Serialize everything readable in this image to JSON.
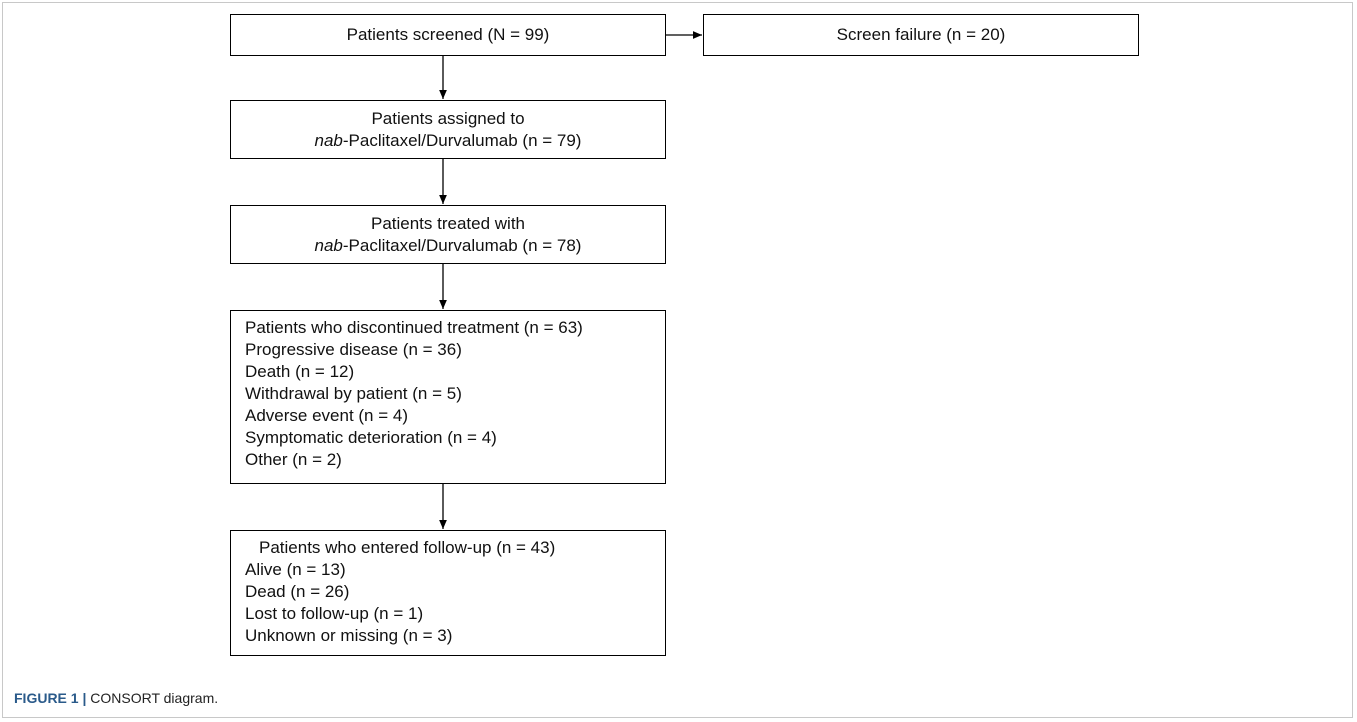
{
  "nodes": [
    {
      "label": "Patients screened (N = 99)"
    },
    {
      "label": "Screen failure (n = 20)"
    },
    {
      "label": "Patients assigned to",
      "italic": "nab",
      "rest": "-Paclitaxel/Durvalumab  (n = 79)"
    },
    {
      "label": "Patients treated with",
      "italic": "nab",
      "rest": "-Paclitaxel/Durvalumab  (n = 78)"
    },
    {
      "label": "Patients who discontinued treatment (n = 63)",
      "items": [
        "Progressive disease (n = 36)",
        "Death (n = 12)",
        "Withdrawal by patient (n = 5)",
        "Adverse event (n = 4)",
        "Symptomatic deterioration (n = 4)",
        "Other (n = 2)"
      ]
    },
    {
      "label": "Patients who entered follow-up (n = 43)",
      "items": [
        "Alive (n = 13)",
        "Dead (n = 26)",
        "Lost to follow-up (n = 1)",
        "Unknown  or missing (n = 3)"
      ]
    }
  ],
  "caption": {
    "label": "FIGURE 1 |",
    "text": "CONSORT diagram."
  }
}
